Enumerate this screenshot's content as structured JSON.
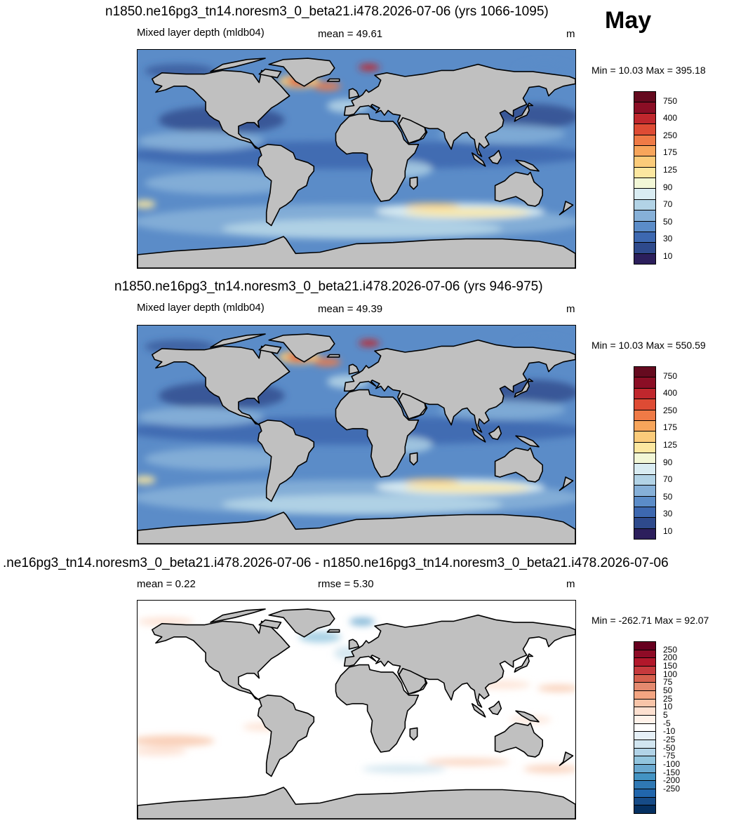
{
  "month": "May",
  "panels": [
    {
      "title": "n1850.ne16pg3_tn14.noresm3_0_beta21.i478.2026-07-06 (yrs 1066-1095)",
      "left_label": "Mixed layer depth (mldb04)",
      "stat_label": "mean =  49.61",
      "units": "m",
      "minmax": "Min =  10.03 Max = 395.18",
      "colorbar": {
        "labels": [
          "10",
          "30",
          "50",
          "70",
          "90",
          "125",
          "175",
          "250",
          "400",
          "750"
        ],
        "colors": [
          "#2c1f5c",
          "#2e4a8c",
          "#3d68b0",
          "#5b8cc8",
          "#86b0d8",
          "#b2d3e6",
          "#d9ecf2",
          "#f2f7d6",
          "#fce7a0",
          "#fbcb7a",
          "#f7a55b",
          "#ef7a46",
          "#de4b34",
          "#c0272d",
          "#8b0e25",
          "#650a1f"
        ]
      }
    },
    {
      "title": "n1850.ne16pg3_tn14.noresm3_0_beta21.i478.2026-07-06 (yrs 946-975)",
      "left_label": "Mixed layer depth (mldb04)",
      "stat_label": "mean =  49.39",
      "units": "m",
      "minmax": "Min =  10.03 Max = 550.59",
      "colorbar": {
        "labels": [
          "10",
          "30",
          "50",
          "70",
          "90",
          "125",
          "175",
          "250",
          "400",
          "750"
        ],
        "colors": [
          "#2c1f5c",
          "#2e4a8c",
          "#3d68b0",
          "#5b8cc8",
          "#86b0d8",
          "#b2d3e6",
          "#d9ecf2",
          "#f2f7d6",
          "#fce7a0",
          "#fbcb7a",
          "#f7a55b",
          "#ef7a46",
          "#de4b34",
          "#c0272d",
          "#8b0e25",
          "#650a1f"
        ]
      }
    },
    {
      "title": ".ne16pg3_tn14.noresm3_0_beta21.i478.2026-07-06 - n1850.ne16pg3_tn14.noresm3_0_beta21.i478.2026-07-06",
      "left_label": "mean =   0.22",
      "stat_label": "rmse =   5.30",
      "units": "m",
      "minmax": "Min = -262.71 Max =  92.07",
      "colorbar": {
        "labels": [
          "250",
          "200",
          "150",
          "100",
          "75",
          "50",
          "25",
          "10",
          "5",
          "-5",
          "-10",
          "-25",
          "-50",
          "-75",
          "-100",
          "-150",
          "-200",
          "-250"
        ],
        "colors": [
          "#67001f",
          "#8e0b26",
          "#b2182b",
          "#c63a3d",
          "#d6604d",
          "#e48a6f",
          "#f4a582",
          "#f8c4a8",
          "#fde0d0",
          "#fff2ea",
          "#ffffff",
          "#e6f0f7",
          "#d1e5f0",
          "#b1d3e7",
          "#92c5de",
          "#6aa9d0",
          "#4393c3",
          "#2f78b4",
          "#2166ac",
          "#164b87",
          "#053061"
        ]
      }
    }
  ],
  "colors": {
    "land": "#c0c0c0",
    "ocean_deep_blue": "#3d68b0",
    "ocean_light_blue": "#a9cfe4",
    "difference_background": "#ffffff"
  }
}
